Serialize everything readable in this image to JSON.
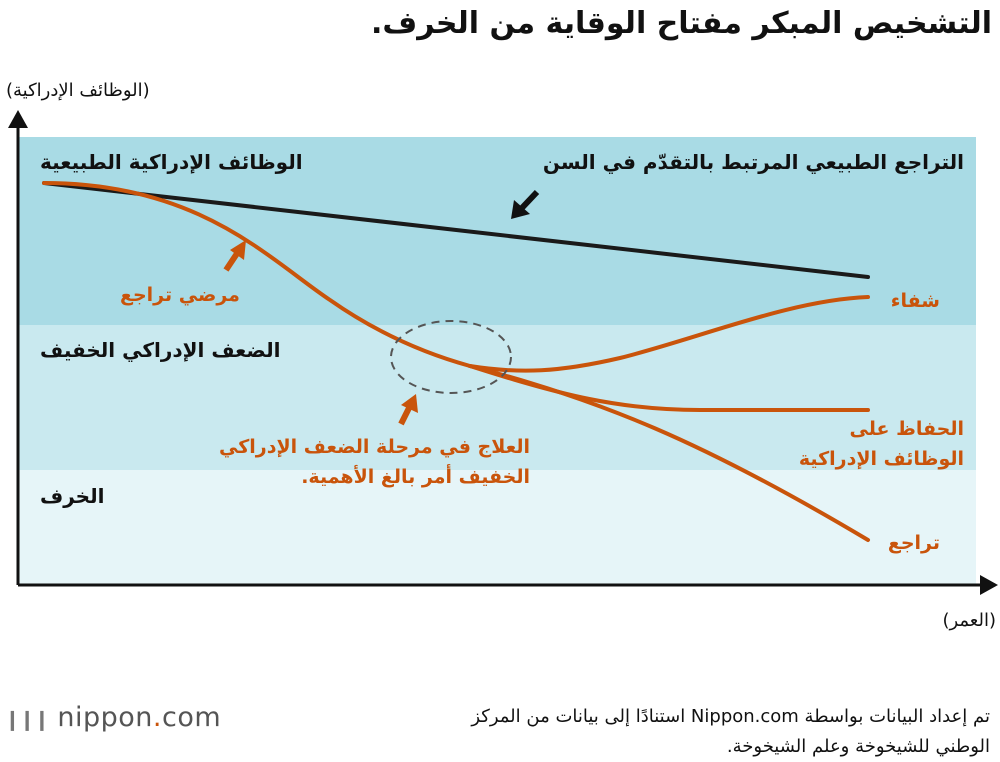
{
  "title": "التشخيص المبكر مفتاح الوقاية من الخرف.",
  "axes": {
    "y_label": "(الوظائف الإدراكية)",
    "x_label": "(العمر)"
  },
  "bands": [
    {
      "label": "الوظائف الإدراكية الطبيعية",
      "color": "#a9dbe5"
    },
    {
      "label": "الضعف الإدراكي الخفيف",
      "color": "#c9e9ef"
    },
    {
      "label": "الخرف",
      "color": "#e6f5f8"
    }
  ],
  "curves": {
    "normal_aging": {
      "label": "التراجع الطبيعي المرتبط بالتقدّم في السن",
      "color": "#1a1a1a"
    },
    "decline_patients": {
      "label": "مرضي تراجع",
      "color": "#c9540b"
    },
    "recovery": {
      "label": "شفاء",
      "color": "#c9540b"
    },
    "maintain": {
      "line1": "الحفاظ على",
      "line2": "الوظائف الإدراكية",
      "color": "#c9540b"
    },
    "decline": {
      "label": "تراجع",
      "color": "#c9540b"
    }
  },
  "annotation": {
    "line1": "العلاج في مرحلة الضعف الإدراكي",
    "line2": "الخفيف أمر بالغ الأهمية."
  },
  "source": {
    "line1": "تم إعداد البيانات بواسطة Nippon.com استنادًا إلى بيانات من المركز",
    "line2": "الوطني للشيخوخة وعلم الشيخوخة."
  },
  "logo": {
    "name": "nippon",
    "dot": ".",
    "tld": "com"
  }
}
